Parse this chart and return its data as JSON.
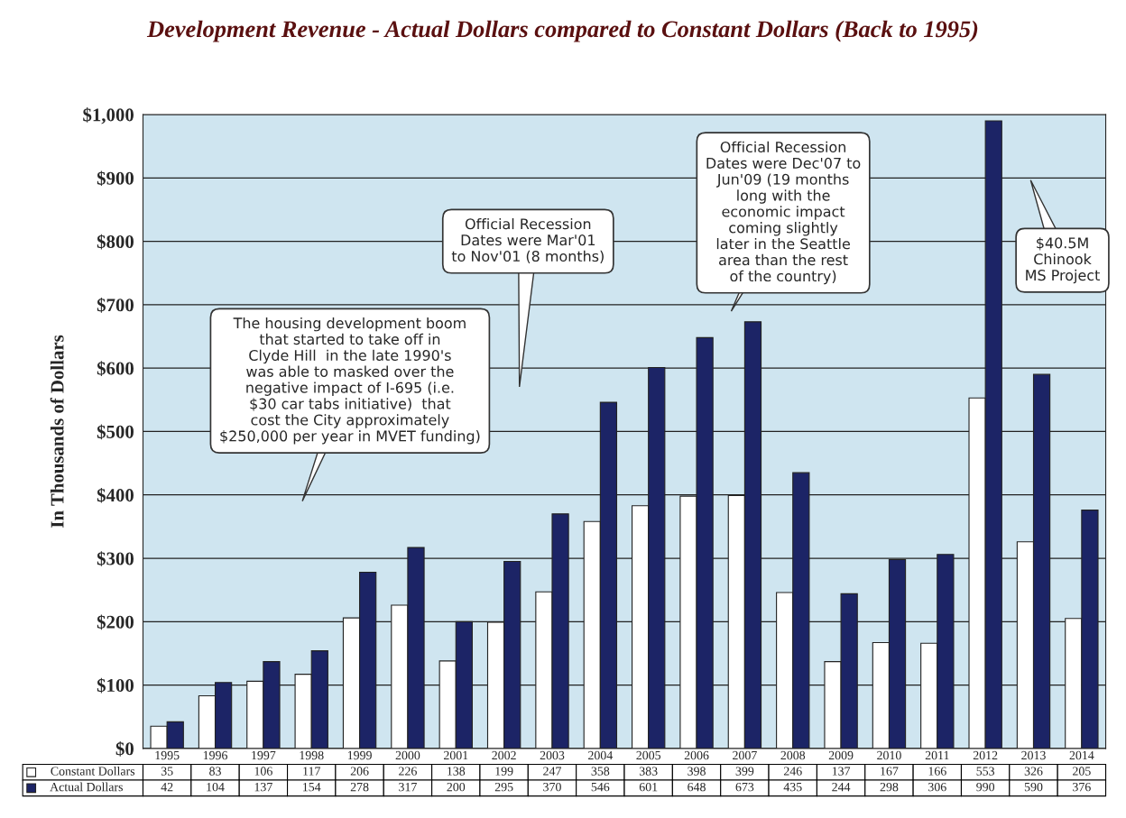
{
  "chart_data": {
    "type": "bar",
    "title": "Development Revenue - Actual Dollars compared to Constant Dollars (Back to 1995)",
    "ylabel": "In Thousands of Dollars",
    "categories": [
      "1995",
      "1996",
      "1997",
      "1998",
      "1999",
      "2000",
      "2001",
      "2002",
      "2003",
      "2004",
      "2005",
      "2006",
      "2007",
      "2008",
      "2009",
      "2010",
      "2011",
      "2012",
      "2013",
      "2014"
    ],
    "series": [
      {
        "name": "Constant Dollars",
        "color": "#ffffff",
        "values": [
          35,
          83,
          106,
          117,
          206,
          226,
          138,
          199,
          247,
          358,
          383,
          398,
          399,
          246,
          137,
          167,
          166,
          553,
          326,
          205
        ]
      },
      {
        "name": "Actual Dollars",
        "color": "#1c2466",
        "values": [
          42,
          104,
          137,
          154,
          278,
          317,
          200,
          295,
          370,
          546,
          601,
          648,
          673,
          435,
          244,
          298,
          306,
          990,
          590,
          376
        ]
      }
    ],
    "ylim": [
      0,
      1000
    ],
    "yticks": [
      {
        "value": 0,
        "label": "$0"
      },
      {
        "value": 100,
        "label": "$100"
      },
      {
        "value": 200,
        "label": "$200"
      },
      {
        "value": 300,
        "label": "$300"
      },
      {
        "value": 400,
        "label": "$400"
      },
      {
        "value": 500,
        "label": "$500"
      },
      {
        "value": 600,
        "label": "$600"
      },
      {
        "value": 700,
        "label": "$700"
      },
      {
        "value": 800,
        "label": "$800"
      },
      {
        "value": 900,
        "label": "$900"
      },
      {
        "value": 1000,
        "label": "$1,000"
      }
    ],
    "grid": "y",
    "legend": "bottom",
    "data_labels": true,
    "annotations": [
      "The housing development boom that started to take off in Clyde Hill  in the late 1990's was able to masked over the negative impact of I-695 (i.e. $30 car tabs initiative)  that cost the City approximately $250,000 per year in MVET funding)",
      "Official Recession Dates were Mar'01 to Nov'01 (8 months)",
      "Official Recession Dates were Dec'07 to Jun'09 (19 months long with the economic impact coming slightly later in the Seattle area than the rest of the country)",
      "$40.5M Chinook MS Project"
    ]
  }
}
